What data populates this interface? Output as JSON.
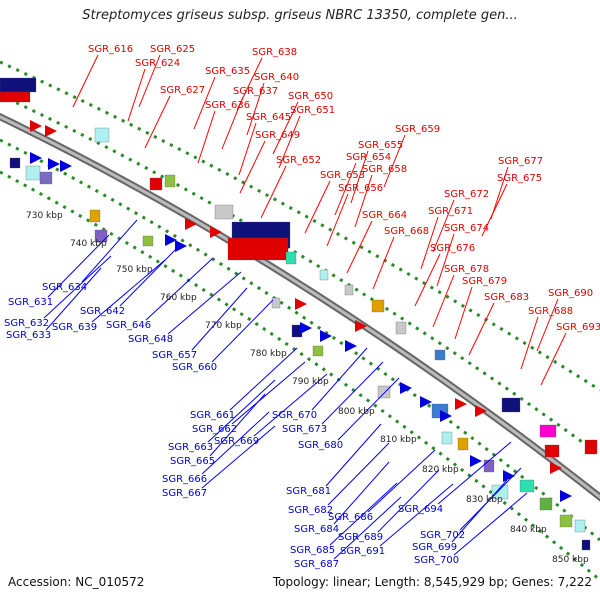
{
  "header": {
    "title": "Streptomyces griseus subsp. griseus NBRC 13350, complete gen..."
  },
  "footer": {
    "accession": "Accession: NC_010572",
    "summary": "Topology: linear; Length: 8,545,929 bp; Genes: 7,222"
  },
  "colors": {
    "upper_label": "#e00000",
    "lower_label": "#0000cc",
    "leader": "#0000ff",
    "leader_red": "#ff0000",
    "dots": "#2a8a2a",
    "axis": "#888888"
  },
  "ruler_ticks": [
    "730 kbp",
    "740 kbp",
    "750 kbp",
    "760 kbp",
    "770 kbp",
    "780 kbp",
    "790 kbp",
    "800 kbp",
    "810 kbp",
    "820 kbp",
    "830 kbp",
    "840 kbp",
    "850 kbp"
  ],
  "upper_genes": [
    "SGR_616",
    "SGR_625",
    "SGR_624",
    "SGR_638",
    "SGR_635",
    "SGR_640",
    "SGR_627",
    "SGR_637",
    "SGR_636",
    "SGR_650",
    "SGR_651",
    "SGR_645",
    "SGR_649",
    "SGR_659",
    "SGR_655",
    "SGR_652",
    "SGR_654",
    "SGR_658",
    "SGR_653",
    "SGR_656",
    "SGR_677",
    "SGR_675",
    "SGR_672",
    "SGR_671",
    "SGR_664",
    "SGR_668",
    "SGR_674",
    "SGR_676",
    "SGR_678",
    "SGR_679",
    "SGR_683",
    "SGR_690",
    "SGR_688",
    "SGR_693"
  ],
  "lower_genes": [
    "SGR_634",
    "SGR_631",
    "SGR_632",
    "SGR_639",
    "SGR_633",
    "SGR_642",
    "SGR_646",
    "SGR_648",
    "SGR_657",
    "SGR_660",
    "SGR_661",
    "SGR_662",
    "SGR_670",
    "SGR_673",
    "SGR_663",
    "SGR_669",
    "SGR_665",
    "SGR_680",
    "SGR_666",
    "SGR_667",
    "SGR_681",
    "SGR_682",
    "SGR_686",
    "SGR_694",
    "SGR_684",
    "SGR_689",
    "SGR_685",
    "SGR_691",
    "SGR_699",
    "SGR_702",
    "SGR_687",
    "SGR_700"
  ]
}
